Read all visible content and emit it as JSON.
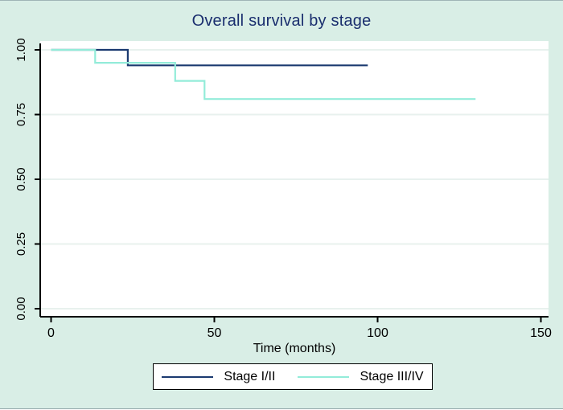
{
  "title": "Overall survival by stage",
  "colors": {
    "background": "#d9eee6",
    "plot_background": "#ffffff",
    "gridline": "#e8f1ee",
    "axis": "#000000",
    "title_text": "#1a2e6e",
    "stage_1_2": "#1b3a70",
    "stage_3_4": "#93ecd9"
  },
  "axes": {
    "xlabel": "Time (months)",
    "x_tick_labels": [
      "0",
      "50",
      "100",
      "150"
    ],
    "x_tick_values": [
      0,
      50,
      100,
      150
    ],
    "y_tick_labels": [
      "1.00",
      "0.75",
      "0.50",
      "0.25",
      "0.00"
    ],
    "y_tick_values": [
      1.0,
      0.75,
      0.5,
      0.25,
      0.0
    ]
  },
  "legend": {
    "items": [
      {
        "label": "Stage I/II",
        "color": "#1b3a70"
      },
      {
        "label": "Stage III/IV",
        "color": "#93ecd9"
      }
    ]
  },
  "chart_data": {
    "type": "line",
    "subtype": "kaplan-meier-step",
    "title": "Overall survival by stage",
    "xlabel": "Time (months)",
    "ylabel": "",
    "xlim": [
      0,
      150
    ],
    "ylim": [
      0,
      1.0
    ],
    "grid": "horizontal",
    "legend_position": "bottom",
    "x_ticks": [
      0,
      50,
      100,
      150
    ],
    "y_ticks": [
      0.0,
      0.25,
      0.5,
      0.75,
      1.0
    ],
    "series": [
      {
        "name": "Stage I/II",
        "color": "#1b3a70",
        "points": [
          [
            0,
            1.0
          ],
          [
            23.5,
            1.0
          ],
          [
            23.5,
            0.94
          ],
          [
            97,
            0.94
          ]
        ]
      },
      {
        "name": "Stage III/IV",
        "color": "#93ecd9",
        "points": [
          [
            0,
            1.0
          ],
          [
            13.5,
            1.0
          ],
          [
            13.5,
            0.95
          ],
          [
            38,
            0.95
          ],
          [
            38,
            0.88
          ],
          [
            47,
            0.88
          ],
          [
            47,
            0.81
          ],
          [
            130,
            0.81
          ]
        ]
      }
    ]
  }
}
